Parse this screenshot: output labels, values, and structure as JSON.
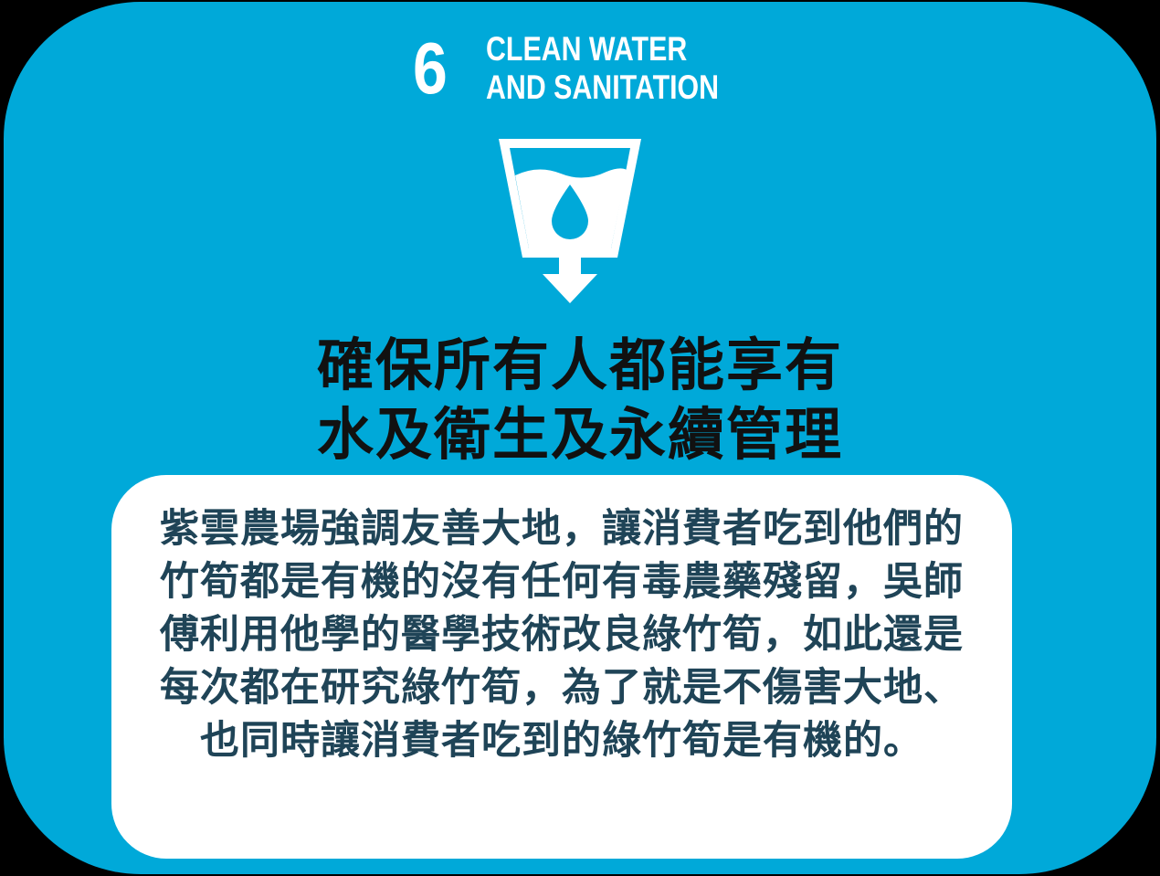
{
  "goal": {
    "number": "6",
    "title_line1": "CLEAN WATER",
    "title_line2": "AND SANITATION",
    "icon": "water-glass-drop-arrow-icon"
  },
  "headline": {
    "line1": "確保所有人都能享有",
    "line2": "水及衛生及永續管理"
  },
  "description": "紫雲農場強調友善大地，讓消費者吃到他們的竹筍都是有機的沒有任何有毒農藥殘留，吳師傅利用他學的醫學技術改良綠竹筍，如此還是每次都在研究綠竹筍，為了就是不傷害大地、也同時讓消費者吃到的綠竹筍是有機的。",
  "colors": {
    "card_background": "#00a9d9",
    "page_background": "#000000",
    "headline_text": "#111111",
    "description_text": "#1f4457",
    "box_background": "#ffffff"
  }
}
